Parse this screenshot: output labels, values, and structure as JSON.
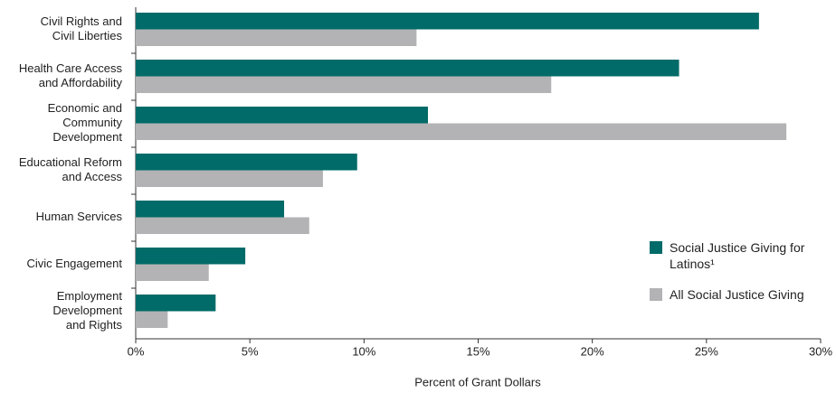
{
  "chart_data": {
    "type": "barh",
    "categories": [
      [
        "Civil Rights and",
        "Civil Liberties"
      ],
      [
        "Health Care Access",
        "and Affordability"
      ],
      [
        "Economic and",
        "Community",
        "Development"
      ],
      [
        "Educational Reform",
        "and Access"
      ],
      [
        "Human Services"
      ],
      [
        "Civic Engagement"
      ],
      [
        "Employment",
        "Development",
        "and Rights"
      ]
    ],
    "series": [
      {
        "name": "Social Justice Giving for Latinos¹",
        "color": "#006b68",
        "values": [
          27.3,
          23.8,
          12.8,
          9.7,
          6.5,
          4.8,
          3.5
        ]
      },
      {
        "name": "All Social Justice Giving",
        "color": "#b3b3b5",
        "values": [
          12.3,
          18.2,
          28.5,
          8.2,
          7.6,
          3.2,
          1.4
        ]
      }
    ],
    "xlabel": "Percent of Grant Dollars",
    "xlim": [
      0,
      30
    ],
    "xticks": [
      {
        "value": 0,
        "label": "0%"
      },
      {
        "value": 5,
        "label": "5%"
      },
      {
        "value": 10,
        "label": "10%"
      },
      {
        "value": 15,
        "label": "15%"
      },
      {
        "value": 20,
        "label": "20%"
      },
      {
        "value": 25,
        "label": "25%"
      },
      {
        "value": 30,
        "label": "30%"
      }
    ],
    "legend": "lower right"
  }
}
